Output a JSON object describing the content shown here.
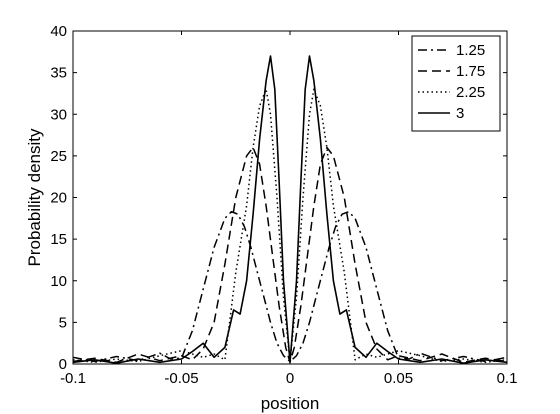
{
  "chart_data": {
    "type": "line",
    "xlabel": "position",
    "ylabel": "Probability density",
    "xlim": [
      -0.1,
      0.1
    ],
    "ylim": [
      0,
      40
    ],
    "xticks": [
      "-0.1",
      "-0.05",
      "0",
      "0.05",
      "0.1"
    ],
    "yticks": [
      "0",
      "5",
      "10",
      "15",
      "20",
      "25",
      "30",
      "35",
      "40"
    ],
    "grid": false,
    "legend_position": "top-right",
    "series": [
      {
        "name": "1.25",
        "dash": "dashdot",
        "x": [
          -0.1,
          -0.09,
          -0.08,
          -0.07,
          -0.06,
          -0.055,
          -0.05,
          -0.045,
          -0.04,
          -0.035,
          -0.03,
          -0.027,
          -0.024,
          -0.021,
          -0.018,
          -0.015,
          -0.012,
          -0.009,
          -0.006,
          -0.003,
          0,
          0.003,
          0.006,
          0.009,
          0.012,
          0.015,
          0.018,
          0.021,
          0.024,
          0.027,
          0.03,
          0.035,
          0.04,
          0.045,
          0.05,
          0.055,
          0.06,
          0.07,
          0.08,
          0.09,
          0.1
        ],
        "y": [
          0.8,
          0.3,
          0.9,
          0.4,
          1.3,
          0.6,
          0.7,
          4,
          9,
          14,
          17.5,
          18.3,
          18,
          16.5,
          14,
          11,
          8,
          5,
          2.5,
          1,
          0.3,
          1,
          2.5,
          5,
          8,
          11,
          14,
          16.5,
          18,
          18.3,
          17.5,
          14,
          9,
          4,
          0.7,
          0.6,
          1.3,
          0.4,
          0.9,
          0.3,
          0.8
        ]
      },
      {
        "name": "1.75",
        "dash": "dashed",
        "x": [
          -0.1,
          -0.09,
          -0.08,
          -0.07,
          -0.06,
          -0.05,
          -0.045,
          -0.04,
          -0.035,
          -0.03,
          -0.025,
          -0.02,
          -0.017,
          -0.014,
          -0.011,
          -0.008,
          -0.005,
          -0.002,
          0,
          0.002,
          0.005,
          0.008,
          0.011,
          0.014,
          0.017,
          0.02,
          0.025,
          0.03,
          0.035,
          0.04,
          0.045,
          0.05,
          0.06,
          0.07,
          0.08,
          0.09,
          0.1
        ],
        "y": [
          0.3,
          0.7,
          0.2,
          1.2,
          0.4,
          1.0,
          0.5,
          1.8,
          5,
          12,
          20,
          25,
          26,
          24,
          19,
          13,
          7,
          2,
          0.2,
          2,
          7,
          13,
          19,
          24,
          26,
          25,
          20,
          12,
          5,
          1.8,
          0.5,
          1.0,
          0.4,
          1.2,
          0.2,
          0.7,
          0.3
        ]
      },
      {
        "name": "2.25",
        "dash": "dotted",
        "x": [
          -0.1,
          -0.09,
          -0.08,
          -0.07,
          -0.06,
          -0.05,
          -0.04,
          -0.035,
          -0.03,
          -0.025,
          -0.02,
          -0.017,
          -0.014,
          -0.011,
          -0.009,
          -0.006,
          -0.003,
          0,
          0.003,
          0.006,
          0.009,
          0.011,
          0.014,
          0.017,
          0.02,
          0.025,
          0.03,
          0.035,
          0.04,
          0.05,
          0.06,
          0.07,
          0.08,
          0.09,
          0.1
        ],
        "y": [
          0.5,
          0.2,
          0.6,
          0.3,
          1.0,
          1.6,
          0.8,
          1.2,
          0.5,
          11,
          19,
          26,
          31,
          33,
          30,
          20,
          8,
          0.3,
          8,
          20,
          30,
          33,
          31,
          26,
          19,
          11,
          0.5,
          1.2,
          0.8,
          1.6,
          1.0,
          0.3,
          0.6,
          0.2,
          0.5
        ]
      },
      {
        "name": "3",
        "dash": "solid",
        "x": [
          -0.1,
          -0.09,
          -0.08,
          -0.07,
          -0.06,
          -0.05,
          -0.045,
          -0.04,
          -0.035,
          -0.03,
          -0.026,
          -0.023,
          -0.02,
          -0.017,
          -0.014,
          -0.011,
          -0.009,
          -0.007,
          -0.005,
          -0.003,
          0,
          0.003,
          0.005,
          0.007,
          0.009,
          0.011,
          0.014,
          0.017,
          0.02,
          0.023,
          0.026,
          0.03,
          0.035,
          0.04,
          0.045,
          0.05,
          0.06,
          0.07,
          0.08,
          0.09,
          0.1
        ],
        "y": [
          0.2,
          0.5,
          0.1,
          0.6,
          0.2,
          0.6,
          1.5,
          2.5,
          0.8,
          2.0,
          6.5,
          6.0,
          10,
          18,
          27,
          34,
          37,
          33,
          22,
          10,
          0.2,
          10,
          22,
          33,
          37,
          34,
          27,
          18,
          10,
          6.0,
          6.5,
          2.0,
          0.8,
          2.5,
          1.5,
          0.6,
          0.2,
          0.6,
          0.1,
          0.5,
          0.2
        ]
      }
    ]
  }
}
